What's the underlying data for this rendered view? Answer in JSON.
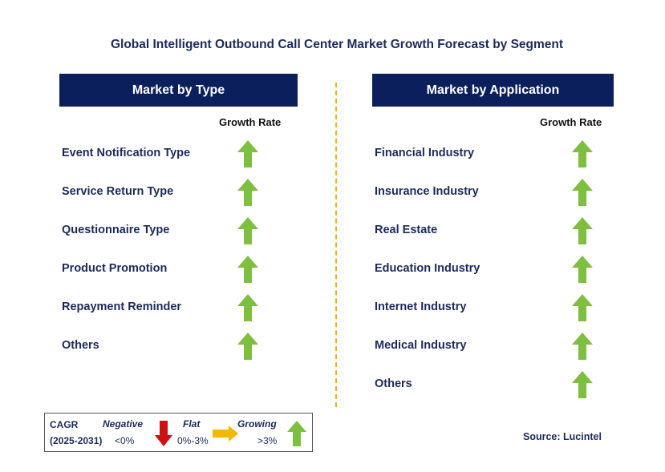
{
  "title": "Global Intelligent Outbound Call Center Market Growth Forecast by Segment",
  "left": {
    "header": "Market by Type",
    "growth_label": "Growth Rate",
    "items": [
      {
        "label": "Event Notification Type",
        "trend": "growing"
      },
      {
        "label": "Service Return Type",
        "trend": "growing"
      },
      {
        "label": "Questionnaire Type",
        "trend": "growing"
      },
      {
        "label": "Product Promotion",
        "trend": "growing"
      },
      {
        "label": "Repayment Reminder",
        "trend": "growing"
      },
      {
        "label": "Others",
        "trend": "growing"
      }
    ]
  },
  "right": {
    "header": "Market by Application",
    "growth_label": "Growth Rate",
    "items": [
      {
        "label": "Financial Industry",
        "trend": "growing"
      },
      {
        "label": "Insurance Industry",
        "trend": "growing"
      },
      {
        "label": "Real Estate",
        "trend": "growing"
      },
      {
        "label": "Education Industry",
        "trend": "growing"
      },
      {
        "label": "Internet Industry",
        "trend": "growing"
      },
      {
        "label": "Medical Industry",
        "trend": "growing"
      },
      {
        "label": "Others",
        "trend": "growing"
      }
    ]
  },
  "legend": {
    "cagr": "CAGR",
    "period": "(2025-2031)",
    "negative_label": "Negative",
    "negative_range": "<0%",
    "flat_label": "Flat",
    "flat_range": "0%-3%",
    "growing_label": "Growing",
    "growing_range": ">3%"
  },
  "source": "Source: Lucintel",
  "colors": {
    "header_bg": "#0b1f5c",
    "text": "#1b2a5c",
    "growing": "#7fbf3f",
    "negative": "#cc1111",
    "flat": "#f5b800",
    "divider": "#f0b400"
  }
}
